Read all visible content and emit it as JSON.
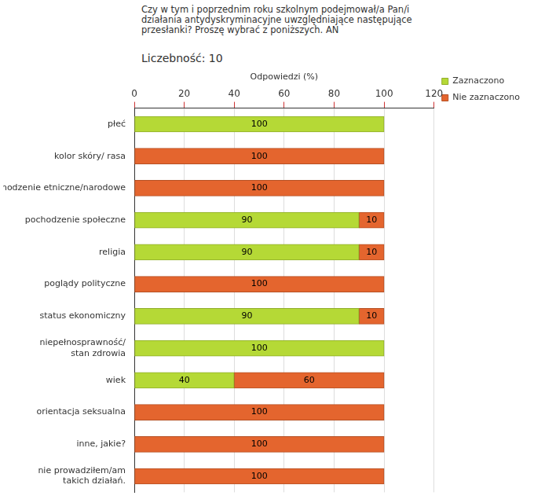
{
  "chart_data": {
    "type": "bar",
    "orientation": "horizontal",
    "stacked": true,
    "title": "Czy w tym i poprzednim roku szkolnym podejmował/a Pan/i działania antydyskryminacyjne uwzględniające następujące przesłanki? Proszę wybrać z poniższych. AN",
    "subtitle": "Liczebność: 10",
    "x_label": "Odpowiedzi (%)",
    "categories": [
      "płeć",
      "kolor skóry/ rasa",
      "pochodzenie etniczne/narodowe",
      "pochodzenie społeczne",
      "religia",
      "poglądy polityczne",
      "status ekonomiczny",
      "niepełnosprawność/ stan zdrowia",
      "wiek",
      "orientacja seksualna",
      "inne, jakie?",
      "nie prowadziłem/am takich działań."
    ],
    "series": [
      {
        "name": "Zaznaczono",
        "color": "#b5d936",
        "values": [
          100,
          0,
          0,
          90,
          90,
          0,
          90,
          100,
          40,
          0,
          0,
          0
        ]
      },
      {
        "name": "Nie zaznaczono",
        "color": "#e4652e",
        "values": [
          0,
          100,
          100,
          10,
          10,
          100,
          10,
          0,
          60,
          100,
          100,
          100
        ]
      }
    ],
    "xlim": [
      0,
      120
    ],
    "xticks": [
      0,
      20,
      40,
      60,
      80,
      100,
      120
    ],
    "grid": true,
    "legend": "upper right",
    "data_labels": true
  }
}
